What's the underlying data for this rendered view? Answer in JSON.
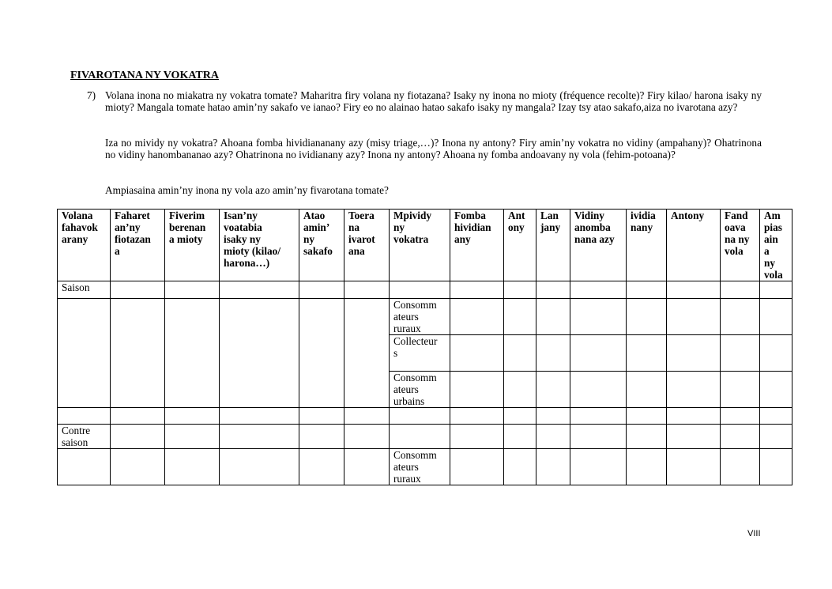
{
  "section_title": "FIVAROTANA NY VOKATRA",
  "question_number": "7)",
  "paragraphs": [
    "Volana inona no miakatra ny vokatra tomate? Maharitra firy volana ny fiotazana? Isaky ny inona no mioty (fréquence recolte)? Firy kilao/ harona isaky ny mioty? Mangala tomate hatao amin’ny sakafo ve ianao? Firy eo no alainao hatao sakafo isaky ny mangala? Izay tsy atao sakafo,aiza no ivarotana azy?",
    "Iza no mividy ny vokatra? Ahoana fomba hividiananany azy (misy triage,…)? Inona ny antony? Firy amin’ny vokatra no vidiny (ampahany)? Ohatrinona no vidiny hanombananao azy? Ohatrinona no ividianany azy? Inona ny antony? Ahoana ny fomba andoavany ny vola (fehim-potoana)?",
    "Ampiasaina amin’ny inona ny vola azo amin’ny fivarotana tomate?"
  ],
  "table": {
    "headers": [
      "Volana\nfahavok\narany",
      "Faharet\nan’ny\nfiotazan\na",
      "Fiverim\nberenan\na mioty",
      "Isan’ny\nvoatabia\nisaky ny\nmioty (kilao/\nharona…)",
      "Atao\namin’\nny\nsakafo",
      "Toera\nna\nivarot\nana",
      "Mpividy\nny\nvokatra",
      "Fomba\nhividian\nany",
      "Ant\nony",
      "Lan\njany",
      "Vidiny\nanomba\nnana azy",
      "ividia\nnany",
      "Antony",
      "Fand\noava\nna ny\nvola",
      "Am\npias\nain\na\nny\nvola"
    ],
    "season_label": "Saison",
    "buyers": [
      "Consomm\nateurs\nruraux",
      "Collecteur\ns",
      "Consomm\nateurs\nurbains"
    ],
    "off_season_label": "Contre\nsaison",
    "off_season_buyer": "Consomm\nateurs\nruraux"
  },
  "page_number": "VIII"
}
